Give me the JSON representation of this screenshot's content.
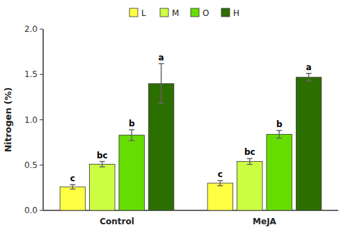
{
  "chart_data": {
    "type": "bar",
    "ylabel": "Nitrogen (%)",
    "categories": [
      "Control",
      "MeJA"
    ],
    "series": [
      {
        "name": "L",
        "color": "#ffff44",
        "values": [
          0.26,
          0.3
        ],
        "errors": [
          0.025,
          0.028
        ],
        "annotations": [
          "c",
          "c"
        ]
      },
      {
        "name": "M",
        "color": "#ccff44",
        "values": [
          0.51,
          0.54
        ],
        "errors": [
          0.03,
          0.032
        ],
        "annotations": [
          "bc",
          "bc"
        ]
      },
      {
        "name": "O",
        "color": "#66dd00",
        "values": [
          0.83,
          0.84
        ],
        "errors": [
          0.06,
          0.042
        ],
        "annotations": [
          "b",
          "b"
        ]
      },
      {
        "name": "H",
        "color": "#2d6e00",
        "values": [
          1.4,
          1.47
        ],
        "errors": [
          0.22,
          0.042
        ],
        "annotations": [
          "a",
          "a"
        ]
      }
    ],
    "ylim": [
      0,
      2.0
    ],
    "yticks": [
      {
        "value": 0,
        "label": "0.0"
      },
      0.5,
      {
        "value": 1,
        "label": "1.0"
      },
      1.5,
      {
        "value": 2,
        "label": "2.0"
      }
    ],
    "grid": false,
    "legend": "top"
  }
}
